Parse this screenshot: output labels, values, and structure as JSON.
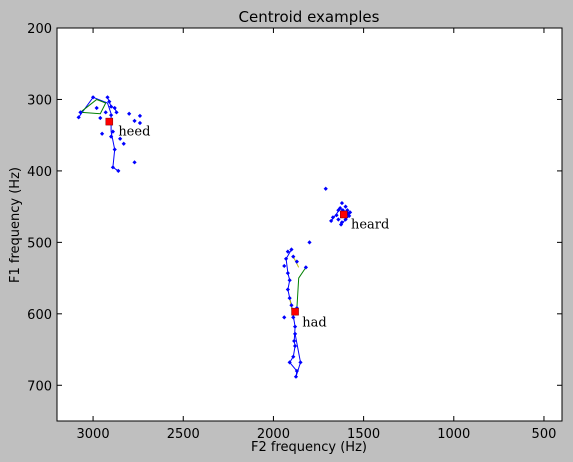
{
  "chart_data": {
    "type": "scatter",
    "title": "Centroid examples",
    "xlabel": "F2 frequency (Hz)",
    "ylabel": "F1 frequency (Hz)",
    "xlim": [
      3200,
      400
    ],
    "ylim": [
      750,
      200
    ],
    "x_ticks": [
      {
        "value": 3000,
        "label": "3000"
      },
      {
        "value": 2500,
        "label": "2500"
      },
      {
        "value": 2000,
        "label": "2000"
      },
      {
        "value": 1500,
        "label": "1500"
      },
      {
        "value": 1000,
        "label": "1000"
      },
      {
        "value": 500,
        "label": "500"
      }
    ],
    "y_ticks": [
      {
        "value": 200,
        "label": "200"
      },
      {
        "value": 300,
        "label": "300"
      },
      {
        "value": 400,
        "label": "400"
      },
      {
        "value": 500,
        "label": "500"
      },
      {
        "value": 600,
        "label": "600"
      },
      {
        "value": 700,
        "label": "700"
      }
    ],
    "grid": false,
    "colors": {
      "points": "#0000ff",
      "centroid": "#ff0000",
      "trace_blue": "#0000ff",
      "trace_green": "#008000",
      "trace_yellow": "#bfbf00"
    },
    "groups": [
      {
        "label": "heed",
        "centroid": {
          "x": 2910,
          "y": 331
        },
        "label_pos": {
          "x": 2860,
          "y": 345
        },
        "points": [
          {
            "x": 3080,
            "y": 325
          },
          {
            "x": 3070,
            "y": 318
          },
          {
            "x": 3000,
            "y": 297
          },
          {
            "x": 2920,
            "y": 297
          },
          {
            "x": 2910,
            "y": 303
          },
          {
            "x": 2900,
            "y": 310
          },
          {
            "x": 2880,
            "y": 312
          },
          {
            "x": 2870,
            "y": 318
          },
          {
            "x": 2930,
            "y": 318
          },
          {
            "x": 2960,
            "y": 326
          },
          {
            "x": 2980,
            "y": 312
          },
          {
            "x": 2900,
            "y": 322
          },
          {
            "x": 2800,
            "y": 320
          },
          {
            "x": 2770,
            "y": 330
          },
          {
            "x": 2740,
            "y": 323
          },
          {
            "x": 2740,
            "y": 333
          },
          {
            "x": 2900,
            "y": 352
          },
          {
            "x": 2890,
            "y": 345
          },
          {
            "x": 2850,
            "y": 355
          },
          {
            "x": 2830,
            "y": 362
          },
          {
            "x": 2880,
            "y": 370
          },
          {
            "x": 2890,
            "y": 395
          },
          {
            "x": 2860,
            "y": 400
          },
          {
            "x": 2770,
            "y": 388
          },
          {
            "x": 2950,
            "y": 348
          }
        ],
        "traces": [
          {
            "color": "blue",
            "points": [
              {
                "x": 3080,
                "y": 325
              },
              {
                "x": 3000,
                "y": 297
              },
              {
                "x": 2920,
                "y": 305
              },
              {
                "x": 2900,
                "y": 320
              },
              {
                "x": 2900,
                "y": 345
              },
              {
                "x": 2880,
                "y": 370
              },
              {
                "x": 2890,
                "y": 395
              },
              {
                "x": 2860,
                "y": 400
              }
            ]
          },
          {
            "color": "blue",
            "points": [
              {
                "x": 2920,
                "y": 297
              },
              {
                "x": 2900,
                "y": 310
              },
              {
                "x": 2880,
                "y": 312
              },
              {
                "x": 2870,
                "y": 318
              }
            ]
          },
          {
            "color": "green",
            "points": [
              {
                "x": 3070,
                "y": 318
              },
              {
                "x": 2980,
                "y": 300
              },
              {
                "x": 2930,
                "y": 305
              },
              {
                "x": 2960,
                "y": 320
              },
              {
                "x": 3070,
                "y": 318
              }
            ]
          }
        ]
      },
      {
        "label": "heard",
        "centroid": {
          "x": 1610,
          "y": 461
        },
        "label_pos": {
          "x": 1570,
          "y": 475
        },
        "points": [
          {
            "x": 1710,
            "y": 425
          },
          {
            "x": 1680,
            "y": 470
          },
          {
            "x": 1670,
            "y": 465
          },
          {
            "x": 1650,
            "y": 462
          },
          {
            "x": 1640,
            "y": 455
          },
          {
            "x": 1630,
            "y": 452
          },
          {
            "x": 1620,
            "y": 445
          },
          {
            "x": 1615,
            "y": 455
          },
          {
            "x": 1600,
            "y": 450
          },
          {
            "x": 1590,
            "y": 455
          },
          {
            "x": 1585,
            "y": 460
          },
          {
            "x": 1580,
            "y": 463
          },
          {
            "x": 1600,
            "y": 468
          },
          {
            "x": 1620,
            "y": 472
          },
          {
            "x": 1640,
            "y": 468
          },
          {
            "x": 1625,
            "y": 475
          },
          {
            "x": 1575,
            "y": 458
          }
        ],
        "traces": [
          {
            "color": "blue",
            "points": [
              {
                "x": 1680,
                "y": 470
              },
              {
                "x": 1650,
                "y": 460
              },
              {
                "x": 1630,
                "y": 452
              },
              {
                "x": 1610,
                "y": 458
              },
              {
                "x": 1590,
                "y": 455
              },
              {
                "x": 1580,
                "y": 463
              },
              {
                "x": 1600,
                "y": 468
              },
              {
                "x": 1625,
                "y": 475
              }
            ]
          }
        ]
      },
      {
        "label": "had",
        "centroid": {
          "x": 1880,
          "y": 597
        },
        "label_pos": {
          "x": 1840,
          "y": 612
        },
        "points": [
          {
            "x": 1800,
            "y": 500
          },
          {
            "x": 1900,
            "y": 510
          },
          {
            "x": 1920,
            "y": 513
          },
          {
            "x": 1890,
            "y": 520
          },
          {
            "x": 1930,
            "y": 523
          },
          {
            "x": 1870,
            "y": 527
          },
          {
            "x": 1940,
            "y": 533
          },
          {
            "x": 1820,
            "y": 535
          },
          {
            "x": 1920,
            "y": 543
          },
          {
            "x": 1910,
            "y": 553
          },
          {
            "x": 1920,
            "y": 566
          },
          {
            "x": 1910,
            "y": 578
          },
          {
            "x": 1900,
            "y": 588
          },
          {
            "x": 1940,
            "y": 605
          },
          {
            "x": 1870,
            "y": 592
          },
          {
            "x": 1890,
            "y": 605
          },
          {
            "x": 1880,
            "y": 618
          },
          {
            "x": 1880,
            "y": 628
          },
          {
            "x": 1885,
            "y": 638
          },
          {
            "x": 1880,
            "y": 645
          },
          {
            "x": 1890,
            "y": 660
          },
          {
            "x": 1910,
            "y": 668
          },
          {
            "x": 1850,
            "y": 668
          },
          {
            "x": 1870,
            "y": 680
          },
          {
            "x": 1875,
            "y": 688
          }
        ],
        "traces": [
          {
            "color": "blue",
            "points": [
              {
                "x": 1900,
                "y": 510
              },
              {
                "x": 1930,
                "y": 523
              },
              {
                "x": 1920,
                "y": 543
              },
              {
                "x": 1910,
                "y": 553
              },
              {
                "x": 1920,
                "y": 566
              },
              {
                "x": 1910,
                "y": 578
              },
              {
                "x": 1900,
                "y": 588
              },
              {
                "x": 1880,
                "y": 618
              },
              {
                "x": 1885,
                "y": 638
              },
              {
                "x": 1880,
                "y": 645
              },
              {
                "x": 1890,
                "y": 660
              },
              {
                "x": 1910,
                "y": 668
              },
              {
                "x": 1870,
                "y": 680
              },
              {
                "x": 1875,
                "y": 688
              },
              {
                "x": 1850,
                "y": 668
              },
              {
                "x": 1880,
                "y": 628
              }
            ]
          },
          {
            "color": "green",
            "points": [
              {
                "x": 1820,
                "y": 535
              },
              {
                "x": 1860,
                "y": 550
              },
              {
                "x": 1870,
                "y": 592
              }
            ]
          },
          {
            "color": "yellow",
            "points": [
              {
                "x": 1890,
                "y": 520
              },
              {
                "x": 1860,
                "y": 535
              }
            ]
          },
          {
            "color": "yellow",
            "points": [
              {
                "x": 1910,
                "y": 578
              },
              {
                "x": 1895,
                "y": 598
              }
            ]
          }
        ]
      }
    ]
  }
}
